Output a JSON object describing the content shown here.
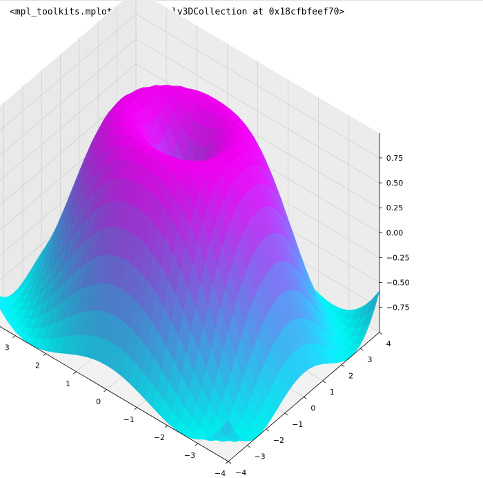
{
  "cell_output": {
    "text": "<mpl_toolkits.mplot3d.art3d.Poly3DCollection at 0x18cfbfeef70>"
  },
  "chart_data": {
    "type": "surface3d",
    "title": "",
    "xlabel": "",
    "ylabel": "",
    "zlabel": "",
    "function": "z = sin(sqrt(x^2 + y^2))",
    "colormap": "cool",
    "colormap_colors": [
      "#00ffff",
      "#ff00ff"
    ],
    "xlim": [
      -4,
      4
    ],
    "ylim": [
      -4,
      4
    ],
    "zlim": [
      -1,
      1
    ],
    "x_ticks": [
      "−4",
      "−3",
      "−2",
      "−1",
      "0",
      "1",
      "2",
      "3",
      "4"
    ],
    "y_ticks": [
      "−4",
      "−3",
      "−2",
      "−1",
      "0",
      "1",
      "2",
      "3",
      "4"
    ],
    "z_ticks": [
      "−0.75",
      "−0.50",
      "−0.25",
      "0.00",
      "0.25",
      "0.50",
      "0.75"
    ],
    "grid": true,
    "pane_color": "#f2f2f2",
    "grid_color": "#d0d0d0"
  }
}
